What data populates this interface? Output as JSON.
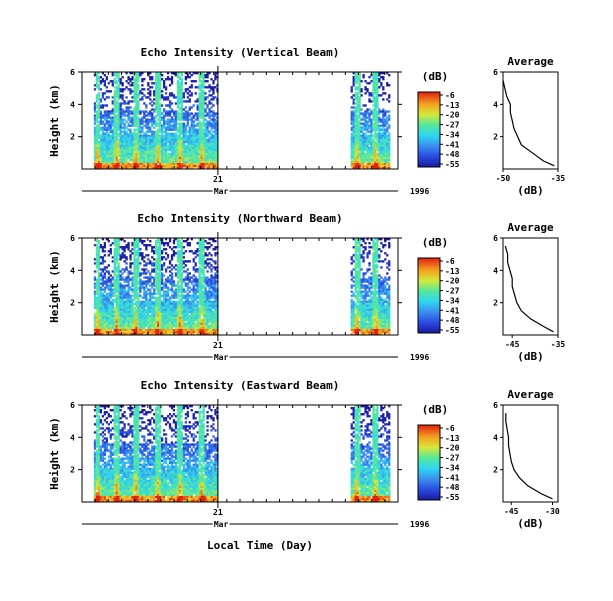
{
  "chart_data": [
    {
      "type": "heatmap",
      "title": "Echo Intensity (Vertical Beam)",
      "ylabel": "Height (km)",
      "yticks": [
        "6",
        "4",
        "2"
      ],
      "ylim": [
        0,
        6
      ],
      "xtick_label": "21",
      "month_label": "Mar",
      "year_label": "1996",
      "colorbar": {
        "unit": "(dB)",
        "ticks": [
          "-6",
          "-13",
          "-20",
          "-27",
          "-34",
          "-41",
          "-48",
          "-55"
        ]
      },
      "data_gap": {
        "from_day_fraction": 0.43,
        "to_day_fraction": 0.85
      },
      "profile": {
        "title": "Average",
        "xlabel": "(dB)",
        "xticks": [
          "-50",
          "-35"
        ],
        "xlim": [
          -50,
          -35
        ],
        "yticks": [
          "6",
          "4",
          "2"
        ],
        "height": [
          0.2,
          0.5,
          1.0,
          1.5,
          2.0,
          2.5,
          3.0,
          3.5,
          4.0,
          4.5,
          5.0,
          5.5
        ],
        "db": [
          -36,
          -39,
          -42,
          -45,
          -46,
          -47,
          -47.5,
          -48,
          -48,
          -49,
          -49.5,
          -50
        ]
      }
    },
    {
      "type": "heatmap",
      "title": "Echo Intensity (Northward Beam)",
      "ylabel": "Height (km)",
      "yticks": [
        "6",
        "4",
        "2"
      ],
      "ylim": [
        0,
        6
      ],
      "xtick_label": "21",
      "month_label": "Mar",
      "year_label": "1996",
      "colorbar": {
        "unit": "(dB)",
        "ticks": [
          "-6",
          "-13",
          "-20",
          "-27",
          "-34",
          "-41",
          "-48",
          "-55"
        ]
      },
      "data_gap": {
        "from_day_fraction": 0.43,
        "to_day_fraction": 0.85
      },
      "profile": {
        "title": "Average",
        "xlabel": "(dB)",
        "xticks": [
          "-45",
          "-35"
        ],
        "xlim": [
          -47,
          -35
        ],
        "yticks": [
          "6",
          "4",
          "2"
        ],
        "height": [
          0.2,
          0.5,
          1.0,
          1.5,
          2.0,
          2.5,
          3.0,
          3.5,
          4.0,
          4.5,
          5.0,
          5.5
        ],
        "db": [
          -36,
          -38,
          -41,
          -43,
          -44,
          -44.5,
          -45,
          -45,
          -45.5,
          -46,
          -46,
          -46.5
        ]
      }
    },
    {
      "type": "heatmap",
      "title": "Echo Intensity (Eastward Beam)",
      "ylabel": "Height (km)",
      "yticks": [
        "6",
        "4",
        "2"
      ],
      "ylim": [
        0,
        6
      ],
      "xtick_label": "21",
      "month_label": "Mar",
      "year_label": "1996",
      "xlabel": "Local Time (Day)",
      "colorbar": {
        "unit": "(dB)",
        "ticks": [
          "-6",
          "-13",
          "-20",
          "-27",
          "-34",
          "-41",
          "-48",
          "-55"
        ]
      },
      "data_gap": {
        "from_day_fraction": 0.43,
        "to_day_fraction": 0.85
      },
      "profile": {
        "title": "Average",
        "xlabel": "(dB)",
        "xticks": [
          "-45",
          "-30"
        ],
        "xlim": [
          -48,
          -28
        ],
        "yticks": [
          "6",
          "4",
          "2"
        ],
        "height": [
          0.2,
          0.5,
          1.0,
          1.5,
          2.0,
          2.5,
          3.0,
          3.5,
          4.0,
          4.5,
          5.0,
          5.5
        ],
        "db": [
          -30,
          -34,
          -39,
          -42,
          -44,
          -45,
          -45.5,
          -46,
          -46,
          -46.5,
          -47,
          -47
        ]
      }
    }
  ]
}
